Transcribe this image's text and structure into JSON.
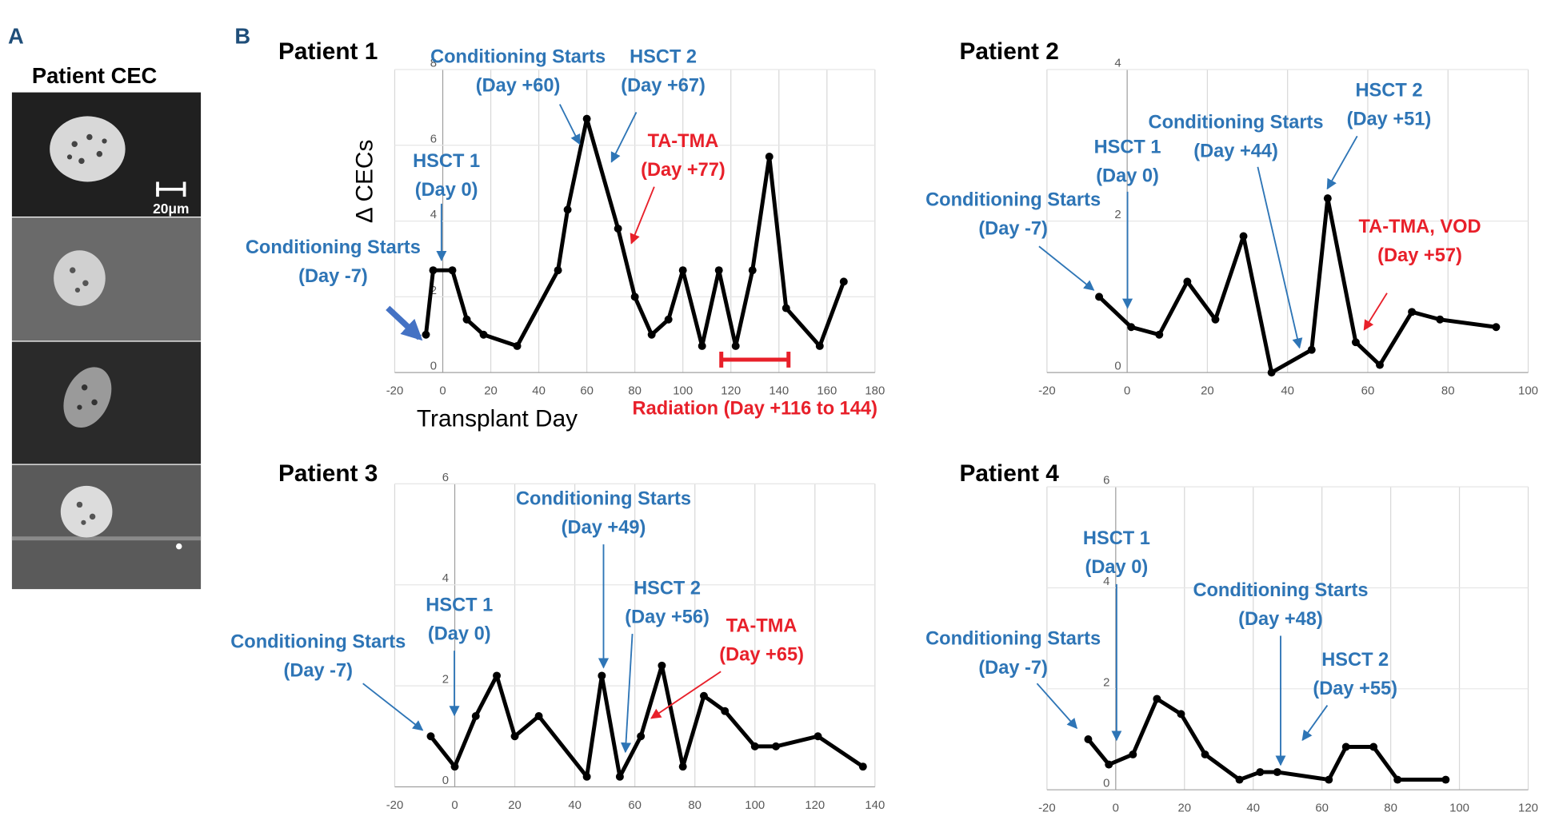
{
  "figure": {
    "panel_a_label": "A",
    "panel_b_label": "B",
    "image_title": "Patient CEC",
    "scale_bar": "20μm"
  },
  "chart_data": [
    {
      "type": "line",
      "title": "Patient 1",
      "x_label": "Transplant Day",
      "y_label": "Δ CECs",
      "color": "#000000",
      "grid": true,
      "x": [
        -7,
        -4,
        4,
        10,
        17,
        31,
        48,
        52,
        60,
        73,
        80,
        87,
        94,
        100,
        108,
        115,
        122,
        129,
        136,
        143,
        157,
        167
      ],
      "values": [
        1.0,
        2.7,
        2.7,
        1.4,
        1.0,
        0.7,
        2.7,
        4.3,
        6.7,
        3.8,
        2.0,
        1.0,
        1.4,
        2.7,
        0.7,
        2.7,
        0.7,
        2.7,
        5.7,
        1.7,
        0.7,
        2.4
      ],
      "xlim": [
        -20,
        180
      ],
      "xticks": [
        -20,
        0,
        20,
        40,
        60,
        80,
        100,
        120,
        140,
        160,
        180
      ],
      "ylim": [
        0,
        8
      ],
      "yticks": [
        0,
        2,
        4,
        6,
        8
      ],
      "annotations": [
        {
          "lines": [
            "Conditioning Starts",
            "(Day -7)"
          ],
          "color": "#2e75b6"
        },
        {
          "lines": [
            "HSCT 1",
            "(Day 0)"
          ],
          "color": "#2e75b6"
        },
        {
          "lines": [
            "Conditioning Starts",
            "(Day +60)"
          ],
          "color": "#2e75b6"
        },
        {
          "lines": [
            "HSCT 2",
            "(Day +67)"
          ],
          "color": "#2e75b6"
        },
        {
          "lines": [
            "TA-TMA",
            "(Day +77)"
          ],
          "color": "#e8202a"
        }
      ],
      "range": {
        "label": "Radiation (Day +116 to 144)",
        "start": 116,
        "end": 144,
        "color": "#e8202a"
      }
    },
    {
      "type": "line",
      "title": "Patient 2",
      "color": "#000000",
      "grid": true,
      "x": [
        -7,
        1,
        8,
        15,
        22,
        29,
        36,
        46,
        50,
        57,
        63,
        71,
        78,
        92
      ],
      "values": [
        1.0,
        0.6,
        0.5,
        1.2,
        0.7,
        1.8,
        0.0,
        0.3,
        2.3,
        0.4,
        0.1,
        0.8,
        0.7,
        0.6
      ],
      "xlim": [
        -20,
        100
      ],
      "xticks": [
        -20,
        0,
        20,
        40,
        60,
        80,
        100
      ],
      "ylim": [
        0,
        4
      ],
      "yticks": [
        0,
        2,
        4
      ],
      "annotations": [
        {
          "lines": [
            "Conditioning Starts",
            "(Day -7)"
          ],
          "color": "#2e75b6"
        },
        {
          "lines": [
            "HSCT 1",
            "(Day 0)"
          ],
          "color": "#2e75b6"
        },
        {
          "lines": [
            "Conditioning Starts",
            "(Day +44)"
          ],
          "color": "#2e75b6"
        },
        {
          "lines": [
            "HSCT 2",
            "(Day +51)"
          ],
          "color": "#2e75b6"
        },
        {
          "lines": [
            "TA-TMA, VOD",
            "(Day +57)"
          ],
          "color": "#e8202a"
        }
      ]
    },
    {
      "type": "line",
      "title": "Patient 3",
      "color": "#000000",
      "grid": true,
      "x": [
        -8,
        0,
        7,
        14,
        20,
        28,
        44,
        49,
        55,
        62,
        69,
        76,
        83,
        90,
        100,
        107,
        121,
        136
      ],
      "values": [
        1.0,
        0.4,
        1.4,
        2.2,
        1.0,
        1.4,
        0.2,
        2.2,
        0.2,
        1.0,
        2.4,
        0.4,
        1.8,
        1.5,
        0.8,
        0.8,
        1.0,
        0.4
      ],
      "xlim": [
        -20,
        140
      ],
      "xticks": [
        -20,
        0,
        20,
        40,
        60,
        80,
        100,
        120,
        140
      ],
      "ylim": [
        0,
        6
      ],
      "yticks": [
        0,
        2,
        4,
        6
      ],
      "annotations": [
        {
          "lines": [
            "Conditioning Starts",
            "(Day -7)"
          ],
          "color": "#2e75b6"
        },
        {
          "lines": [
            "HSCT 1",
            "(Day 0)"
          ],
          "color": "#2e75b6"
        },
        {
          "lines": [
            "Conditioning Starts",
            "(Day +49)"
          ],
          "color": "#2e75b6"
        },
        {
          "lines": [
            "HSCT 2",
            "(Day +56)"
          ],
          "color": "#2e75b6"
        },
        {
          "lines": [
            "TA-TMA",
            "(Day +65)"
          ],
          "color": "#e8202a"
        }
      ]
    },
    {
      "type": "line",
      "title": "Patient 4",
      "color": "#000000",
      "grid": true,
      "x": [
        -8,
        -2,
        5,
        12,
        19,
        26,
        36,
        42,
        47,
        62,
        67,
        75,
        82,
        96
      ],
      "values": [
        1.0,
        0.5,
        0.7,
        1.8,
        1.5,
        0.7,
        0.2,
        0.35,
        0.35,
        0.2,
        0.85,
        0.85,
        0.2,
        0.2
      ],
      "xlim": [
        -20,
        120
      ],
      "xticks": [
        -20,
        0,
        20,
        40,
        60,
        80,
        100,
        120
      ],
      "ylim": [
        0,
        6
      ],
      "yticks": [
        0,
        2,
        4,
        6
      ],
      "annotations": [
        {
          "lines": [
            "HSCT 1",
            "(Day 0)"
          ],
          "color": "#2e75b6"
        },
        {
          "lines": [
            "Conditioning Starts",
            "(Day -7)"
          ],
          "color": "#2e75b6"
        },
        {
          "lines": [
            "Conditioning Starts",
            "(Day +48)"
          ],
          "color": "#2e75b6"
        },
        {
          "lines": [
            "HSCT 2",
            "(Day +55)"
          ],
          "color": "#2e75b6"
        }
      ]
    }
  ]
}
